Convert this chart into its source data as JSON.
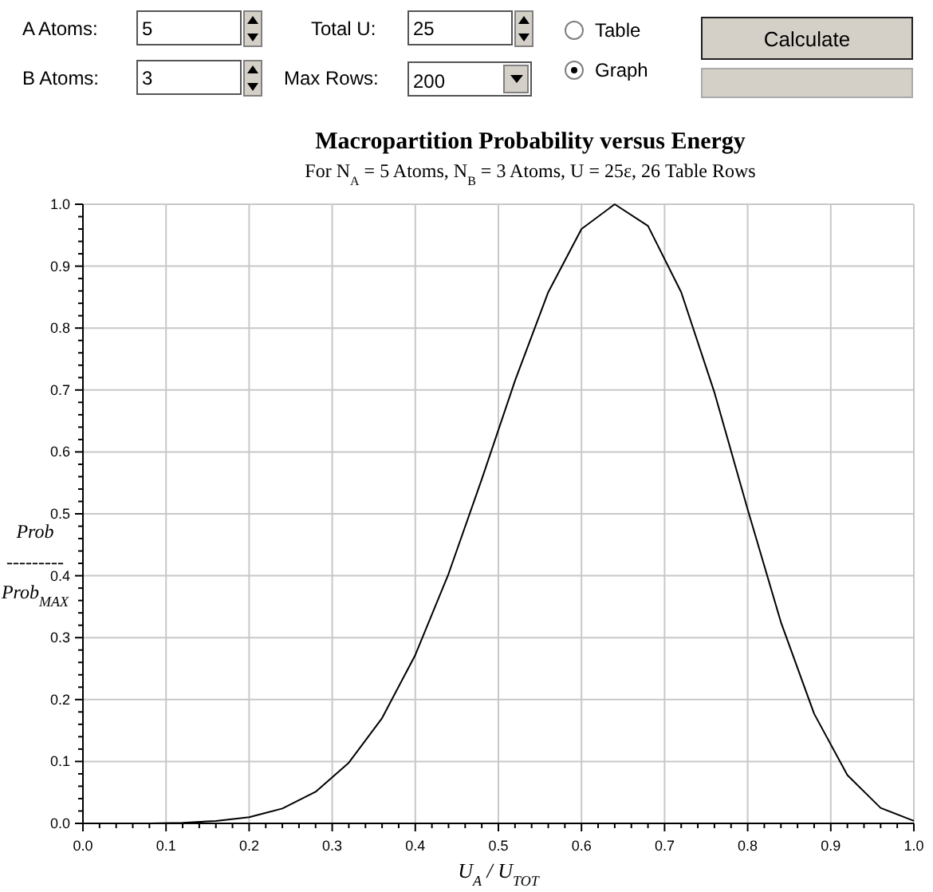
{
  "chart_data": {
    "type": "line",
    "title": "Macropartition Probability versus Energy",
    "subtitle": "For N$_{A}$ = 5 Atoms, N$_{B}$ = 3 Atoms, U = 25ε, 26 Table Rows",
    "xlabel": "U$_{A}$ / U$_{TOT}$",
    "ylabel": "Prob\n---------\nProb$_{MAX}$",
    "annotations": [
      "A Atoms:",
      "5",
      "Total U:",
      "25",
      "Table",
      "Calculate",
      "B Atoms:",
      "3",
      "Max Rows:",
      "200",
      "Graph"
    ],
    "x": [
      0,
      0.04,
      0.08,
      0.12,
      0.16,
      0.2,
      0.24,
      0.28,
      0.32,
      0.36,
      0.4,
      0.44,
      0.48,
      0.52,
      0.56,
      0.6,
      0.64,
      0.68,
      0.72,
      0.76,
      0.8,
      0.84,
      0.88,
      0.92,
      0.96,
      1
    ],
    "series": [
      {
        "color": "#000000",
        "values": [
          0,
          0,
          0,
          0.001,
          0.004,
          0.01,
          0.024,
          0.051,
          0.098,
          0.17,
          0.272,
          0.403,
          0.556,
          0.715,
          0.858,
          0.96,
          1,
          0.965,
          0.858,
          0.696,
          0.507,
          0.325,
          0.177,
          0.078,
          0.025,
          0.004
        ]
      }
    ],
    "xlim": [
      0,
      1
    ],
    "ylim": [
      0,
      1
    ],
    "xticks": [
      {
        "value": 0,
        "label": "0.0"
      },
      {
        "value": 0.02,
        "label": null
      },
      {
        "value": 0.04,
        "label": null
      },
      {
        "value": 0.06,
        "label": null
      },
      {
        "value": 0.08,
        "label": null
      },
      {
        "value": 0.1,
        "label": "0.1"
      },
      {
        "value": 0.12,
        "label": null
      },
      {
        "value": 0.14,
        "label": null
      },
      {
        "value": 0.16,
        "label": null
      },
      {
        "value": 0.18,
        "label": null
      },
      {
        "value": 0.2,
        "label": "0.2"
      },
      {
        "value": 0.22,
        "label": null
      },
      {
        "value": 0.24,
        "label": null
      },
      {
        "value": 0.26,
        "label": null
      },
      {
        "value": 0.28,
        "label": null
      },
      {
        "value": 0.3,
        "label": "0.3"
      },
      {
        "value": 0.32,
        "label": null
      },
      {
        "value": 0.34,
        "label": null
      },
      {
        "value": 0.36,
        "label": null
      },
      {
        "value": 0.38,
        "label": null
      },
      {
        "value": 0.4,
        "label": "0.4"
      },
      {
        "value": 0.42,
        "label": null
      },
      {
        "value": 0.44,
        "label": null
      },
      {
        "value": 0.46,
        "label": null
      },
      {
        "value": 0.48,
        "label": null
      },
      {
        "value": 0.5,
        "label": "0.5"
      },
      {
        "value": 0.52,
        "label": null
      },
      {
        "value": 0.54,
        "label": null
      },
      {
        "value": 0.56,
        "label": null
      },
      {
        "value": 0.58,
        "label": null
      },
      {
        "value": 0.6,
        "label": "0.6"
      },
      {
        "value": 0.62,
        "label": null
      },
      {
        "value": 0.64,
        "label": null
      },
      {
        "value": 0.66,
        "label": null
      },
      {
        "value": 0.68,
        "label": null
      },
      {
        "value": 0.7,
        "label": "0.7"
      },
      {
        "value": 0.72,
        "label": null
      },
      {
        "value": 0.74,
        "label": null
      },
      {
        "value": 0.76,
        "label": null
      },
      {
        "value": 0.78,
        "label": null
      },
      {
        "value": 0.8,
        "label": "0.8"
      },
      {
        "value": 0.82,
        "label": null
      },
      {
        "value": 0.84,
        "label": null
      },
      {
        "value": 0.86,
        "label": null
      },
      {
        "value": 0.88,
        "label": null
      },
      {
        "value": 0.9,
        "label": "0.9"
      },
      {
        "value": 0.92,
        "label": null
      },
      {
        "value": 0.94,
        "label": null
      },
      {
        "value": 0.96,
        "label": null
      },
      {
        "value": 0.98,
        "label": null
      },
      {
        "value": 1,
        "label": "1.0"
      }
    ],
    "yticks": [
      {
        "value": 0,
        "label": "0.0"
      },
      {
        "value": 0.02,
        "label": null
      },
      {
        "value": 0.04,
        "label": null
      },
      {
        "value": 0.06,
        "label": null
      },
      {
        "value": 0.08,
        "label": null
      },
      {
        "value": 0.1,
        "label": "0.1"
      },
      {
        "value": 0.12,
        "label": null
      },
      {
        "value": 0.14,
        "label": null
      },
      {
        "value": 0.16,
        "label": null
      },
      {
        "value": 0.18,
        "label": null
      },
      {
        "value": 0.2,
        "label": "0.2"
      },
      {
        "value": 0.22,
        "label": null
      },
      {
        "value": 0.24,
        "label": null
      },
      {
        "value": 0.26,
        "label": null
      },
      {
        "value": 0.28,
        "label": null
      },
      {
        "value": 0.3,
        "label": "0.3"
      },
      {
        "value": 0.32,
        "label": null
      },
      {
        "value": 0.34,
        "label": null
      },
      {
        "value": 0.36,
        "label": null
      },
      {
        "value": 0.38,
        "label": null
      },
      {
        "value": 0.4,
        "label": "0.4"
      },
      {
        "value": 0.42,
        "label": null
      },
      {
        "value": 0.44,
        "label": null
      },
      {
        "value": 0.46,
        "label": null
      },
      {
        "value": 0.48,
        "label": null
      },
      {
        "value": 0.5,
        "label": "0.5"
      },
      {
        "value": 0.52,
        "label": null
      },
      {
        "value": 0.54,
        "label": null
      },
      {
        "value": 0.56,
        "label": null
      },
      {
        "value": 0.58,
        "label": null
      },
      {
        "value": 0.6,
        "label": "0.6"
      },
      {
        "value": 0.62,
        "label": null
      },
      {
        "value": 0.64,
        "label": null
      },
      {
        "value": 0.66,
        "label": null
      },
      {
        "value": 0.68,
        "label": null
      },
      {
        "value": 0.7,
        "label": "0.7"
      },
      {
        "value": 0.72,
        "label": null
      },
      {
        "value": 0.74,
        "label": null
      },
      {
        "value": 0.76,
        "label": null
      },
      {
        "value": 0.78,
        "label": null
      },
      {
        "value": 0.8,
        "label": "0.8"
      },
      {
        "value": 0.82,
        "label": null
      },
      {
        "value": 0.84,
        "label": null
      },
      {
        "value": 0.86,
        "label": null
      },
      {
        "value": 0.88,
        "label": null
      },
      {
        "value": 0.9,
        "label": "0.9"
      },
      {
        "value": 0.92,
        "label": null
      },
      {
        "value": 0.94,
        "label": null
      },
      {
        "value": 0.96,
        "label": null
      },
      {
        "value": 0.98,
        "label": null
      },
      {
        "value": 1,
        "label": "1.0"
      }
    ],
    "grid": true,
    "marker": "none",
    "line_style": "solid"
  }
}
